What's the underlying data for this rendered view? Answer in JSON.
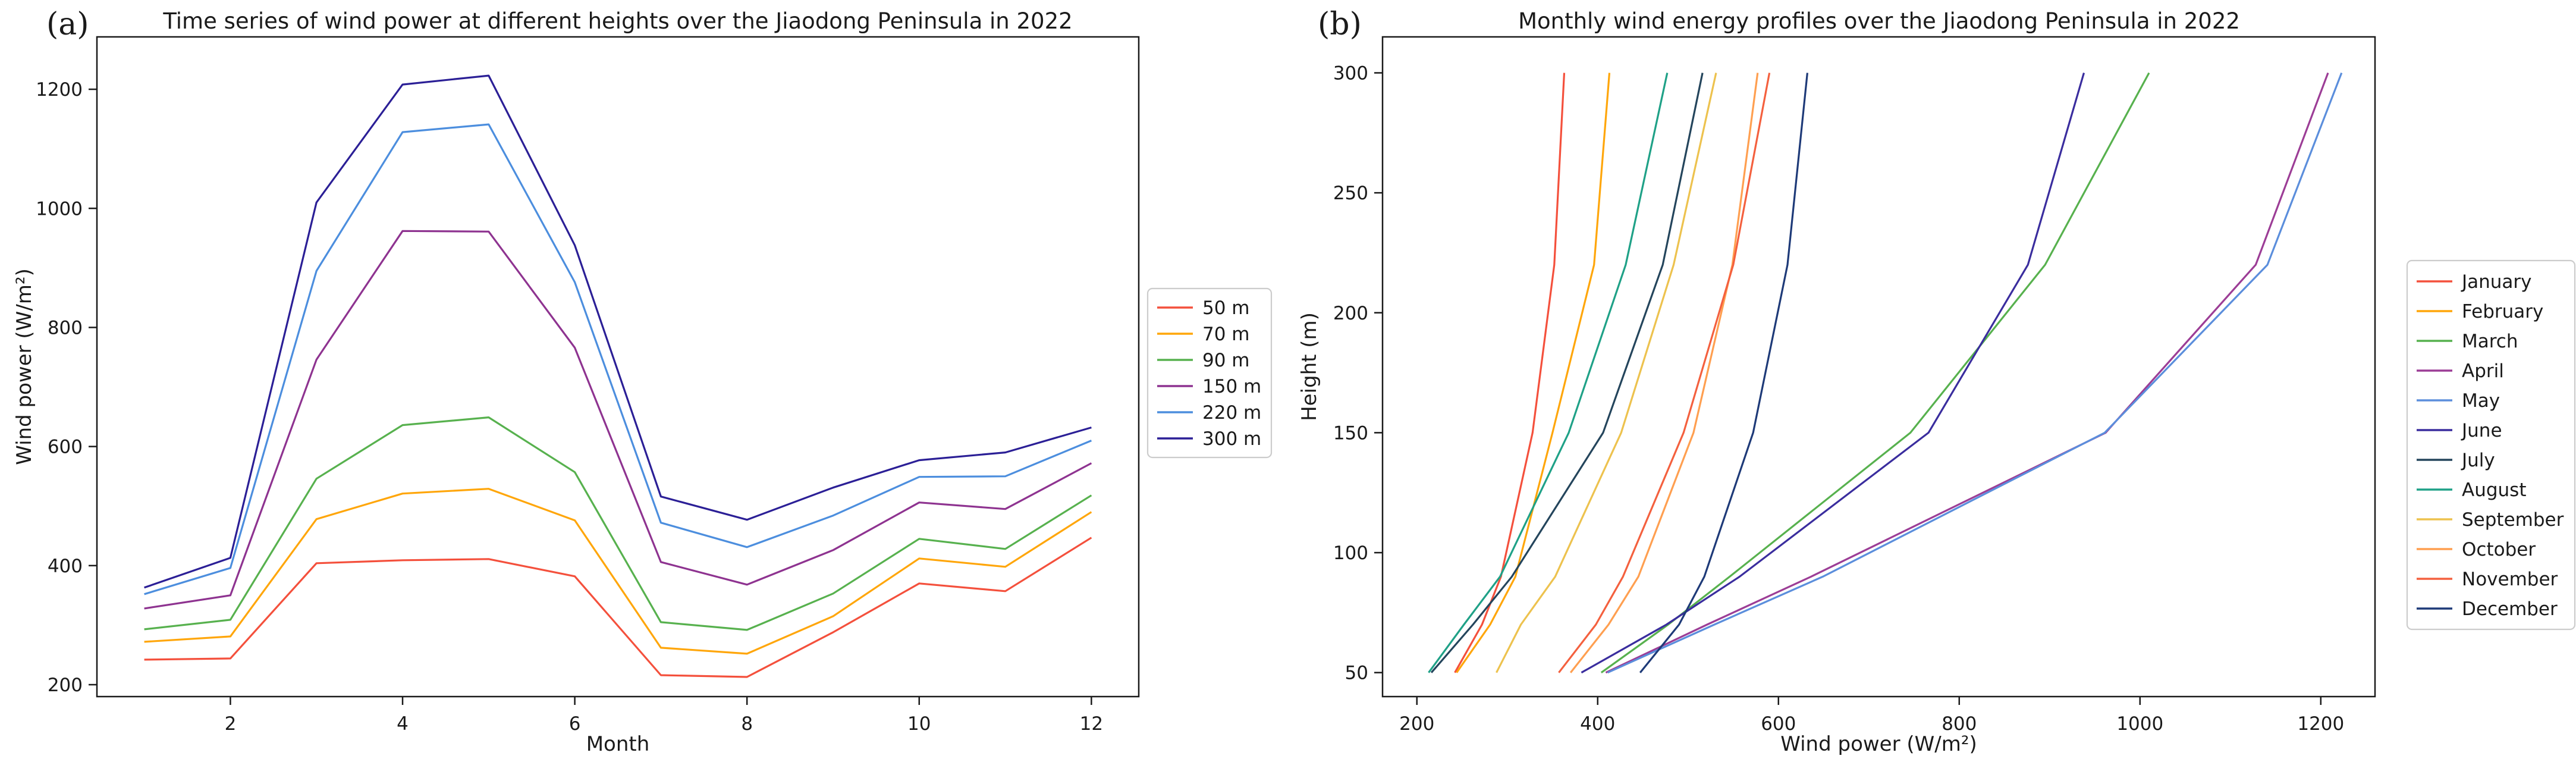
{
  "figure": {
    "background": "#ffffff",
    "axis_color": "#1a1a1a",
    "text_color": "#1a1a1a",
    "panels": [
      {
        "label": "(a)"
      },
      {
        "label": "(b)"
      }
    ]
  },
  "chart_data": [
    {
      "type": "line",
      "panel": "a",
      "title": "Time series of wind power at different heights over the Jiaodong Peninsula in 2022",
      "xlabel": "Month",
      "ylabel": "Wind power (W/m²)",
      "x": [
        1,
        2,
        3,
        4,
        5,
        6,
        7,
        8,
        9,
        10,
        11,
        12
      ],
      "xticks": [
        2,
        4,
        6,
        8,
        10,
        12
      ],
      "yticks": [
        200,
        400,
        600,
        800,
        1000,
        1200
      ],
      "xlim": [
        0.45,
        12.55
      ],
      "ylim": [
        180,
        1288
      ],
      "grid": false,
      "legend_position": "outside right",
      "series": [
        {
          "name": "50 m",
          "color": "#f4503c",
          "values": [
            242,
            244,
            404,
            409,
            411,
            382,
            216,
            213,
            288,
            370,
            357,
            447
          ]
        },
        {
          "name": "70 m",
          "color": "#ffa60a",
          "values": [
            272,
            281,
            478,
            521,
            529,
            476,
            262,
            252,
            315,
            412,
            398,
            490
          ]
        },
        {
          "name": "90 m",
          "color": "#57b14e",
          "values": [
            293,
            309,
            546,
            636,
            649,
            557,
            305,
            292,
            353,
            445,
            428,
            518
          ]
        },
        {
          "name": "150 m",
          "color": "#8e3390",
          "values": [
            328,
            350,
            746,
            962,
            961,
            766,
            406,
            368,
            426,
            506,
            495,
            572
          ]
        },
        {
          "name": "220 m",
          "color": "#4c8ede",
          "values": [
            352,
            396,
            895,
            1128,
            1141,
            876,
            472,
            431,
            484,
            549,
            550,
            610
          ]
        },
        {
          "name": "300 m",
          "color": "#2b1f96",
          "values": [
            363,
            413,
            1010,
            1208,
            1223,
            938,
            516,
            477,
            531,
            577,
            590,
            632
          ]
        }
      ]
    },
    {
      "type": "line",
      "panel": "b",
      "title": "Monthly wind energy profiles over the Jiaodong Peninsula in 2022",
      "xlabel": "Wind power (W/m²)",
      "ylabel": "Height (m)",
      "heights": [
        50,
        70,
        90,
        150,
        220,
        300
      ],
      "xticks": [
        200,
        400,
        600,
        800,
        1000,
        1200
      ],
      "yticks": [
        50,
        100,
        150,
        200,
        250,
        300
      ],
      "xlim": [
        162,
        1260
      ],
      "ylim": [
        40,
        315
      ],
      "grid": false,
      "legend_position": "outside right",
      "series": [
        {
          "name": "January",
          "color": "#f4503c",
          "values": [
            242,
            272,
            293,
            328,
            352,
            363
          ]
        },
        {
          "name": "February",
          "color": "#ffa60a",
          "values": [
            244,
            281,
            309,
            350,
            396,
            413
          ]
        },
        {
          "name": "March",
          "color": "#57b14e",
          "values": [
            404,
            478,
            546,
            746,
            895,
            1010
          ]
        },
        {
          "name": "April",
          "color": "#9c3d96",
          "values": [
            409,
            521,
            636,
            962,
            1128,
            1208
          ]
        },
        {
          "name": "May",
          "color": "#5b8edc",
          "values": [
            411,
            529,
            649,
            961,
            1141,
            1223
          ]
        },
        {
          "name": "June",
          "color": "#3a2d9e",
          "values": [
            382,
            476,
            557,
            766,
            876,
            938
          ]
        },
        {
          "name": "July",
          "color": "#24455c",
          "values": [
            216,
            262,
            305,
            406,
            472,
            516
          ]
        },
        {
          "name": "August",
          "color": "#1fa187",
          "values": [
            213,
            252,
            292,
            368,
            431,
            477
          ]
        },
        {
          "name": "September",
          "color": "#edc24e",
          "values": [
            288,
            315,
            353,
            426,
            484,
            531
          ]
        },
        {
          "name": "October",
          "color": "#ff9f50",
          "values": [
            370,
            412,
            445,
            506,
            549,
            577
          ]
        },
        {
          "name": "November",
          "color": "#f4603e",
          "values": [
            357,
            398,
            428,
            495,
            550,
            590
          ]
        },
        {
          "name": "December",
          "color": "#1e3a78",
          "values": [
            447,
            490,
            518,
            572,
            610,
            632
          ]
        }
      ]
    }
  ]
}
